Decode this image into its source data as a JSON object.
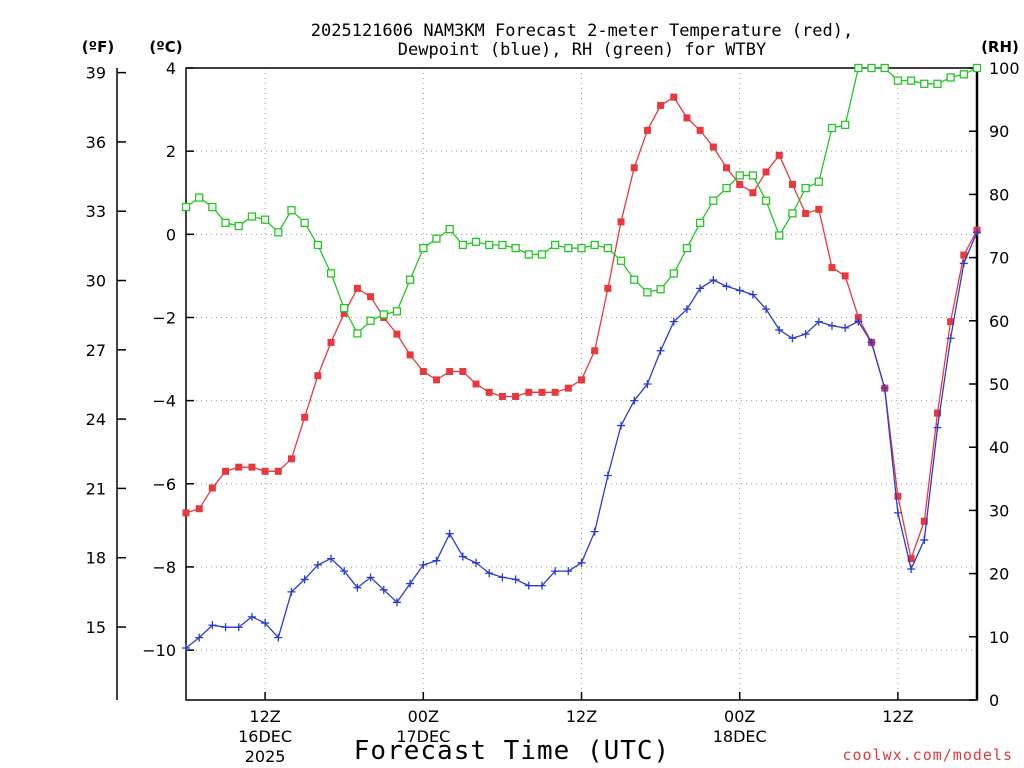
{
  "chart_data": {
    "type": "line",
    "title_line1": "2025121606 NAM3KM Forecast 2-meter Temperature (red),",
    "title_line2": "Dewpoint (blue), RH (green) for WTBY",
    "xlabel": "Forecast Time (UTC)",
    "credit": "coolwx.com/models",
    "unit_f": "(ºF)",
    "unit_c": "(ºC)",
    "unit_rh": "(RH)",
    "x_range_hours": [
      0,
      60
    ],
    "ylim_c": [
      -10.9,
      4.2
    ],
    "ylim_rh": [
      0,
      100
    ],
    "left_f_ticks": [
      "39",
      "36",
      "33",
      "30",
      "27",
      "24",
      "21",
      "18",
      "15"
    ],
    "celsius_ticks": [
      "4",
      "2",
      "0",
      "−2",
      "−4",
      "−6",
      "−8",
      "−10"
    ],
    "rh_ticks": [
      "100",
      "90",
      "80",
      "70",
      "60",
      "50",
      "40",
      "30",
      "20",
      "10",
      "0"
    ],
    "x_ticks": [
      {
        "hour": 6,
        "l1": "12Z",
        "l2": "16DEC",
        "l3": "2025"
      },
      {
        "hour": 18,
        "l1": "00Z",
        "l2": "17DEC",
        "l3": ""
      },
      {
        "hour": 30,
        "l1": "12Z",
        "l2": "",
        "l3": ""
      },
      {
        "hour": 42,
        "l1": "00Z",
        "l2": "18DEC",
        "l3": ""
      },
      {
        "hour": 54,
        "l1": "12Z",
        "l2": "",
        "l3": ""
      }
    ],
    "series": [
      {
        "name": "2-meter Temperature",
        "units": "C",
        "color": "#e8383d",
        "marker": "filled-square",
        "values": [
          -6.7,
          -6.6,
          -6.1,
          -5.7,
          -5.6,
          -5.6,
          -5.7,
          -5.7,
          -5.4,
          -4.4,
          -3.4,
          -2.6,
          -1.9,
          -1.3,
          -1.5,
          -2.0,
          -2.4,
          -2.9,
          -3.3,
          -3.5,
          -3.3,
          -3.3,
          -3.6,
          -3.8,
          -3.9,
          -3.9,
          -3.8,
          -3.8,
          -3.8,
          -3.7,
          -3.5,
          -2.8,
          -1.3,
          0.3,
          1.6,
          2.5,
          3.1,
          3.3,
          2.8,
          2.5,
          2.1,
          1.6,
          1.2,
          1.0,
          1.5,
          1.9,
          1.2,
          0.5,
          0.6,
          -0.8,
          -1.0,
          -2.0,
          -2.6,
          -3.7,
          -6.3,
          -7.8,
          -6.9,
          -4.3,
          -2.1,
          -0.5,
          0.1
        ]
      },
      {
        "name": "Dewpoint",
        "units": "C",
        "color": "#2a3bd0",
        "marker": "plus",
        "values": [
          -9.95,
          -9.7,
          -9.4,
          -9.45,
          -9.45,
          -9.2,
          -9.35,
          -9.7,
          -8.6,
          -8.3,
          -7.95,
          -7.8,
          -8.1,
          -8.5,
          -8.25,
          -8.55,
          -8.85,
          -8.4,
          -7.95,
          -7.85,
          -7.2,
          -7.75,
          -7.9,
          -8.15,
          -8.25,
          -8.3,
          -8.45,
          -8.45,
          -8.1,
          -8.1,
          -7.9,
          -7.15,
          -5.8,
          -4.6,
          -4.0,
          -3.6,
          -2.8,
          -2.1,
          -1.8,
          -1.3,
          -1.1,
          -1.25,
          -1.35,
          -1.45,
          -1.8,
          -2.3,
          -2.5,
          -2.4,
          -2.1,
          -2.2,
          -2.25,
          -2.1,
          -2.6,
          -3.7,
          -6.7,
          -8.05,
          -7.35,
          -4.65,
          -2.5,
          -0.7,
          0.05
        ]
      },
      {
        "name": "RH",
        "units": "%",
        "color": "#22c722",
        "marker": "open-square",
        "values": [
          78,
          79.5,
          78,
          75.5,
          75,
          76.5,
          76,
          74,
          77.5,
          75.5,
          72,
          67.5,
          62,
          58,
          60,
          61,
          61.5,
          66.5,
          71.5,
          73,
          74.5,
          72,
          72.5,
          72,
          72,
          71.5,
          70.5,
          70.5,
          72,
          71.5,
          71.5,
          72,
          71.5,
          69.5,
          66.5,
          64.5,
          65,
          67.5,
          71.5,
          75.5,
          79,
          81,
          83,
          83,
          79,
          73.5,
          77,
          81,
          82,
          90.5,
          91,
          100,
          100,
          100,
          98,
          98,
          97.5,
          97.5,
          98.5,
          99,
          100
        ]
      }
    ]
  }
}
